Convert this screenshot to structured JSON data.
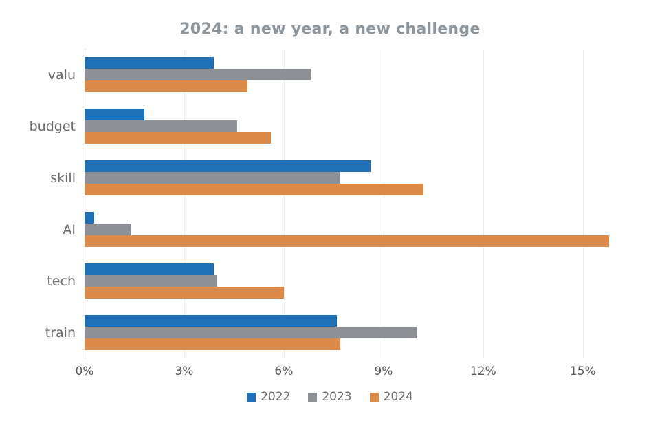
{
  "title": "2024: a new year, a new challenge",
  "chart_data": {
    "type": "bar",
    "orientation": "horizontal",
    "title": "2024: a new year, a new challenge",
    "categories": [
      "valu",
      "budget",
      "skill",
      "AI",
      "tech",
      "train"
    ],
    "series": [
      {
        "name": "2022",
        "color": "#1f70b7",
        "values": [
          3.9,
          1.8,
          8.6,
          0.3,
          3.9,
          7.6
        ]
      },
      {
        "name": "2023",
        "color": "#8d9195",
        "values": [
          6.8,
          4.6,
          7.7,
          1.4,
          4.0,
          10.0
        ]
      },
      {
        "name": "2024",
        "color": "#db8a49",
        "values": [
          4.9,
          5.6,
          10.2,
          15.8,
          6.0,
          7.7
        ]
      }
    ],
    "x_ticks": [
      "0%",
      "3%",
      "6%",
      "9%",
      "12%",
      "15%"
    ],
    "x_tick_values": [
      0,
      3,
      6,
      9,
      12,
      15
    ],
    "xlim": [
      0,
      16.08
    ],
    "xlabel": "",
    "ylabel": "",
    "grid": true,
    "gridline_color": "#ececec",
    "axis_line_color": "#d5d5d5",
    "legend_position": "bottom"
  },
  "legend": [
    {
      "label": "2022",
      "color": "#1f70b7"
    },
    {
      "label": "2023",
      "color": "#8d9195"
    },
    {
      "label": "2024",
      "color": "#db8a49"
    }
  ],
  "colors": {
    "background": "#ffffff",
    "title_text": "#8d959c",
    "category_text": "#6b6b6b",
    "tick_text": "#595959",
    "legend_text": "#6b6b6b"
  }
}
